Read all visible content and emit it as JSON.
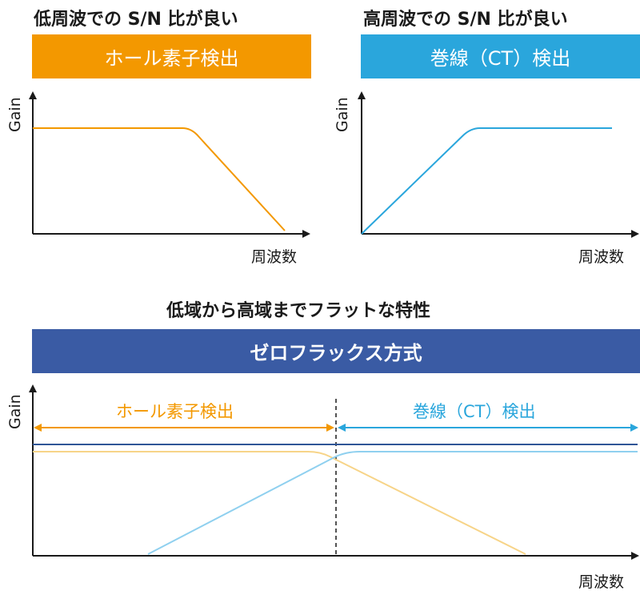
{
  "top_left": {
    "heading": "低周波での S/N 比が良い",
    "banner": "ホール素子検出",
    "y_label": "Gain",
    "x_label": "周波数"
  },
  "top_right": {
    "heading": "高周波での S/N 比が良い",
    "banner": "巻線（CT）検出",
    "y_label": "Gain",
    "x_label": "周波数"
  },
  "bottom": {
    "heading": "低域から高域までフラットな特性",
    "banner": "ゼロフラックス方式",
    "y_label": "Gain",
    "x_label": "周波数",
    "left_range_label": "ホール素子検出",
    "right_range_label": "巻線（CT）検出"
  },
  "colors": {
    "hall": "#f39800",
    "hall_light": "#f7d488",
    "ct": "#2aa6dc",
    "ct_light": "#8fd0ef",
    "zero_flux": "#3a5ba4",
    "zero_flux_line": "#2f5597",
    "axis": "#1a1a1a"
  },
  "chart_data": [
    {
      "type": "line",
      "title": "低周波での S/N 比が良い",
      "xlabel": "周波数",
      "ylabel": "Gain",
      "series": [
        {
          "name": "ホール素子検出",
          "shape": "flat at low frequency, rolls off at high frequency"
        }
      ]
    },
    {
      "type": "line",
      "title": "高周波での S/N 比が良い",
      "xlabel": "周波数",
      "ylabel": "Gain",
      "series": [
        {
          "name": "巻線（CT）検出",
          "shape": "rises at low frequency, flat at high frequency"
        }
      ]
    },
    {
      "type": "line",
      "title": "低域から高域までフラットな特性",
      "xlabel": "周波数",
      "ylabel": "Gain",
      "series": [
        {
          "name": "ゼロフラックス方式",
          "shape": "flat across all frequencies"
        },
        {
          "name": "ホール素子検出",
          "shape": "flat at low frequency, rolls off at high frequency"
        },
        {
          "name": "巻線（CT）検出",
          "shape": "rises at low frequency, flat at high frequency"
        }
      ]
    }
  ]
}
